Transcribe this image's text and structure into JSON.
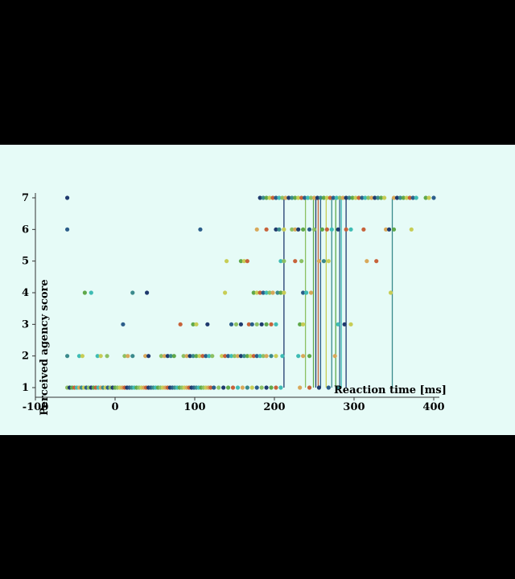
{
  "chart_data": {
    "type": "scatter",
    "xlabel": "Reaction time [ms]",
    "ylabel": "Perceived agency score",
    "xlim": [
      -100,
      410
    ],
    "ylim": [
      0.75,
      7.2
    ],
    "x_ticks": [
      "-100",
      "0",
      "100",
      "200",
      "300",
      "400"
    ],
    "y_ticks": [
      "1",
      "2",
      "3",
      "4",
      "5",
      "6",
      "7"
    ],
    "grid": false,
    "colors": [
      "#1f3a6e",
      "#2b5d8a",
      "#3a8a8c",
      "#3ebcb4",
      "#5fa84a",
      "#8cc063",
      "#c7cd55",
      "#d8a85a",
      "#c7623a"
    ],
    "vertical_lines": [
      {
        "x": 212,
        "color": "#1f3a6e"
      },
      {
        "x": 239,
        "color": "#8cc063"
      },
      {
        "x": 249,
        "color": "#5fa84a"
      },
      {
        "x": 252,
        "color": "#1f3a6e"
      },
      {
        "x": 255,
        "color": "#c7623a"
      },
      {
        "x": 258,
        "color": "#2b5d8a"
      },
      {
        "x": 265,
        "color": "#c7cd55"
      },
      {
        "x": 272,
        "color": "#3a8a8c"
      },
      {
        "x": 277,
        "color": "#5fa84a"
      },
      {
        "x": 282,
        "color": "#2b5d8a"
      },
      {
        "x": 284,
        "color": "#3ebcb4"
      },
      {
        "x": 290,
        "color": "#1f3a6e"
      },
      {
        "x": 348,
        "color": "#3a8a8c"
      }
    ],
    "points": [
      {
        "y": 7,
        "x": [
          -60,
          182,
          186,
          190,
          194,
          198,
          202,
          206,
          210,
          214,
          218,
          222,
          226,
          230,
          234,
          238,
          242,
          246,
          250,
          254,
          258,
          262,
          266,
          270,
          274,
          278,
          282,
          286,
          290,
          294,
          298,
          302,
          306,
          310,
          314,
          318,
          322,
          326,
          330,
          334,
          338,
          350,
          354,
          358,
          362,
          366,
          370,
          374,
          378,
          390,
          394,
          400
        ]
      },
      {
        "y": 6,
        "x": [
          -60,
          107,
          178,
          190,
          202,
          206,
          212,
          222,
          226,
          230,
          236,
          244,
          250,
          260,
          266,
          272,
          280,
          290,
          296,
          312,
          340,
          344,
          350,
          372
        ]
      },
      {
        "y": 5,
        "x": [
          140,
          158,
          162,
          166,
          208,
          212,
          226,
          234,
          256,
          262,
          268,
          316,
          328
        ]
      },
      {
        "y": 4,
        "x": [
          -38,
          -30,
          22,
          40,
          138,
          174,
          178,
          182,
          186,
          190,
          194,
          198,
          204,
          208,
          212,
          236,
          240,
          246,
          346
        ]
      },
      {
        "y": 3,
        "x": [
          10,
          82,
          98,
          102,
          116,
          146,
          152,
          158,
          168,
          172,
          178,
          184,
          190,
          196,
          202,
          232,
          236,
          280,
          288,
          296
        ]
      },
      {
        "y": 2,
        "x": [
          -60,
          -45,
          -41,
          -22,
          -18,
          -10,
          12,
          16,
          22,
          38,
          42,
          58,
          62,
          66,
          70,
          74,
          86,
          90,
          94,
          98,
          102,
          106,
          110,
          114,
          118,
          122,
          134,
          138,
          142,
          146,
          150,
          154,
          158,
          162,
          166,
          170,
          174,
          178,
          182,
          186,
          190,
          196,
          202,
          210,
          230,
          236,
          244,
          276
        ]
      },
      {
        "y": 1,
        "x": [
          -60,
          -57,
          -54,
          -51,
          -48,
          -45,
          -42,
          -39,
          -36,
          -33,
          -30,
          -27,
          -24,
          -21,
          -18,
          -15,
          -12,
          -9,
          -6,
          -3,
          0,
          3,
          6,
          9,
          12,
          15,
          18,
          21,
          24,
          27,
          30,
          33,
          36,
          39,
          42,
          45,
          48,
          51,
          54,
          57,
          60,
          63,
          66,
          69,
          72,
          75,
          78,
          81,
          84,
          87,
          90,
          93,
          96,
          99,
          102,
          105,
          108,
          111,
          114,
          117,
          120,
          124,
          130,
          136,
          142,
          148,
          154,
          160,
          166,
          172,
          178,
          184,
          190,
          196,
          202,
          208,
          232,
          244,
          256,
          268,
          280
        ]
      }
    ]
  }
}
